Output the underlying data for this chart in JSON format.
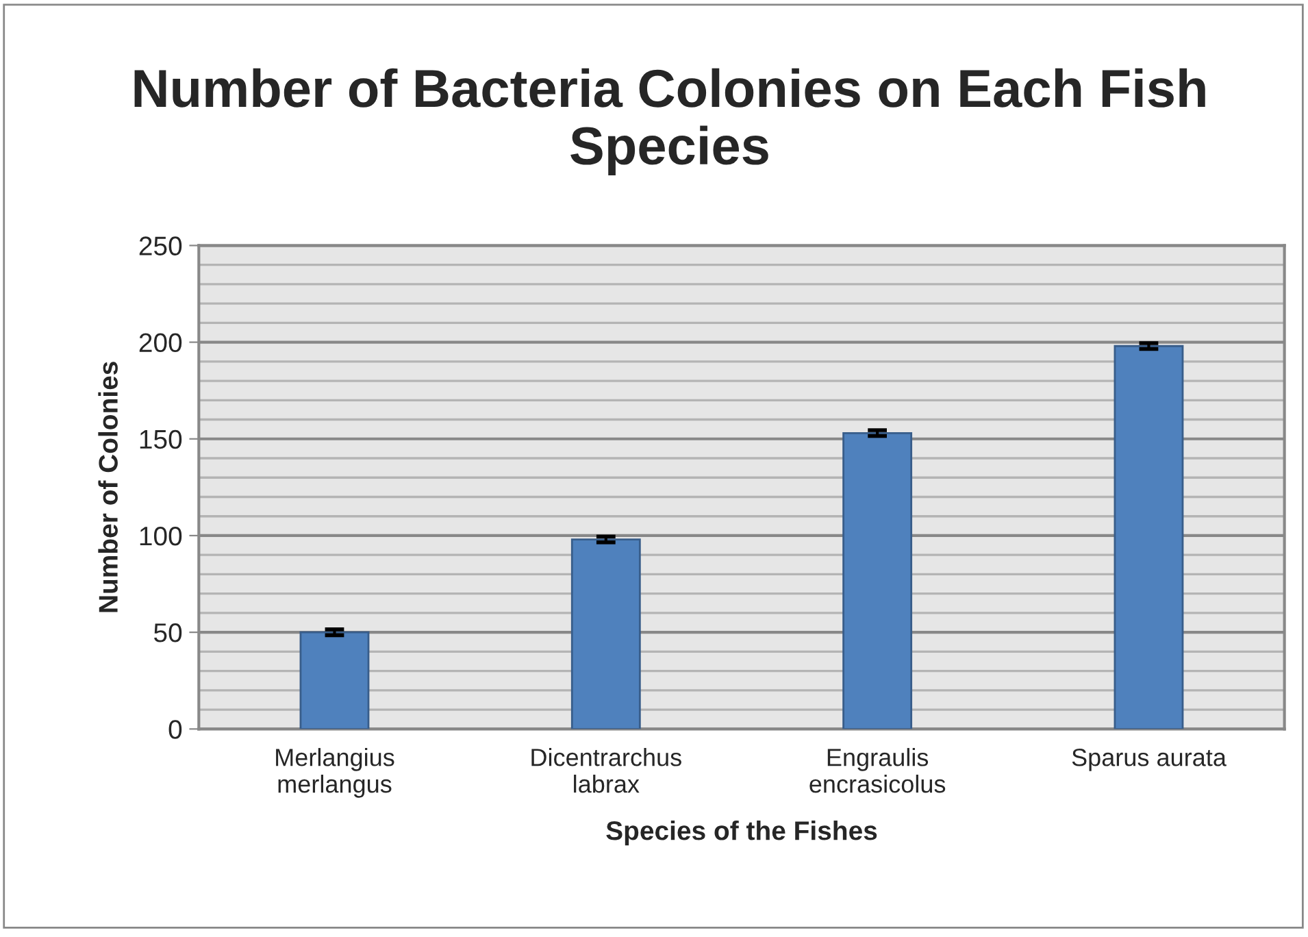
{
  "chart_data": {
    "type": "bar",
    "title": "Number of Bacteria Colonies on Each Fish Species",
    "xlabel": "Species of the Fishes",
    "ylabel": "Number of Colonies",
    "categories": [
      "Merlangius merlangus",
      "Dicentrarchus labrax",
      "Engraulis encrasicolus",
      "Sparus aurata"
    ],
    "values": [
      50,
      98,
      153,
      198
    ],
    "errors": [
      1.5,
      1.5,
      1.5,
      1.5
    ],
    "color": "#4f81bd",
    "ylim": [
      0,
      250
    ],
    "yticks": [
      0,
      50,
      100,
      150,
      200,
      250
    ],
    "grid": "y"
  }
}
